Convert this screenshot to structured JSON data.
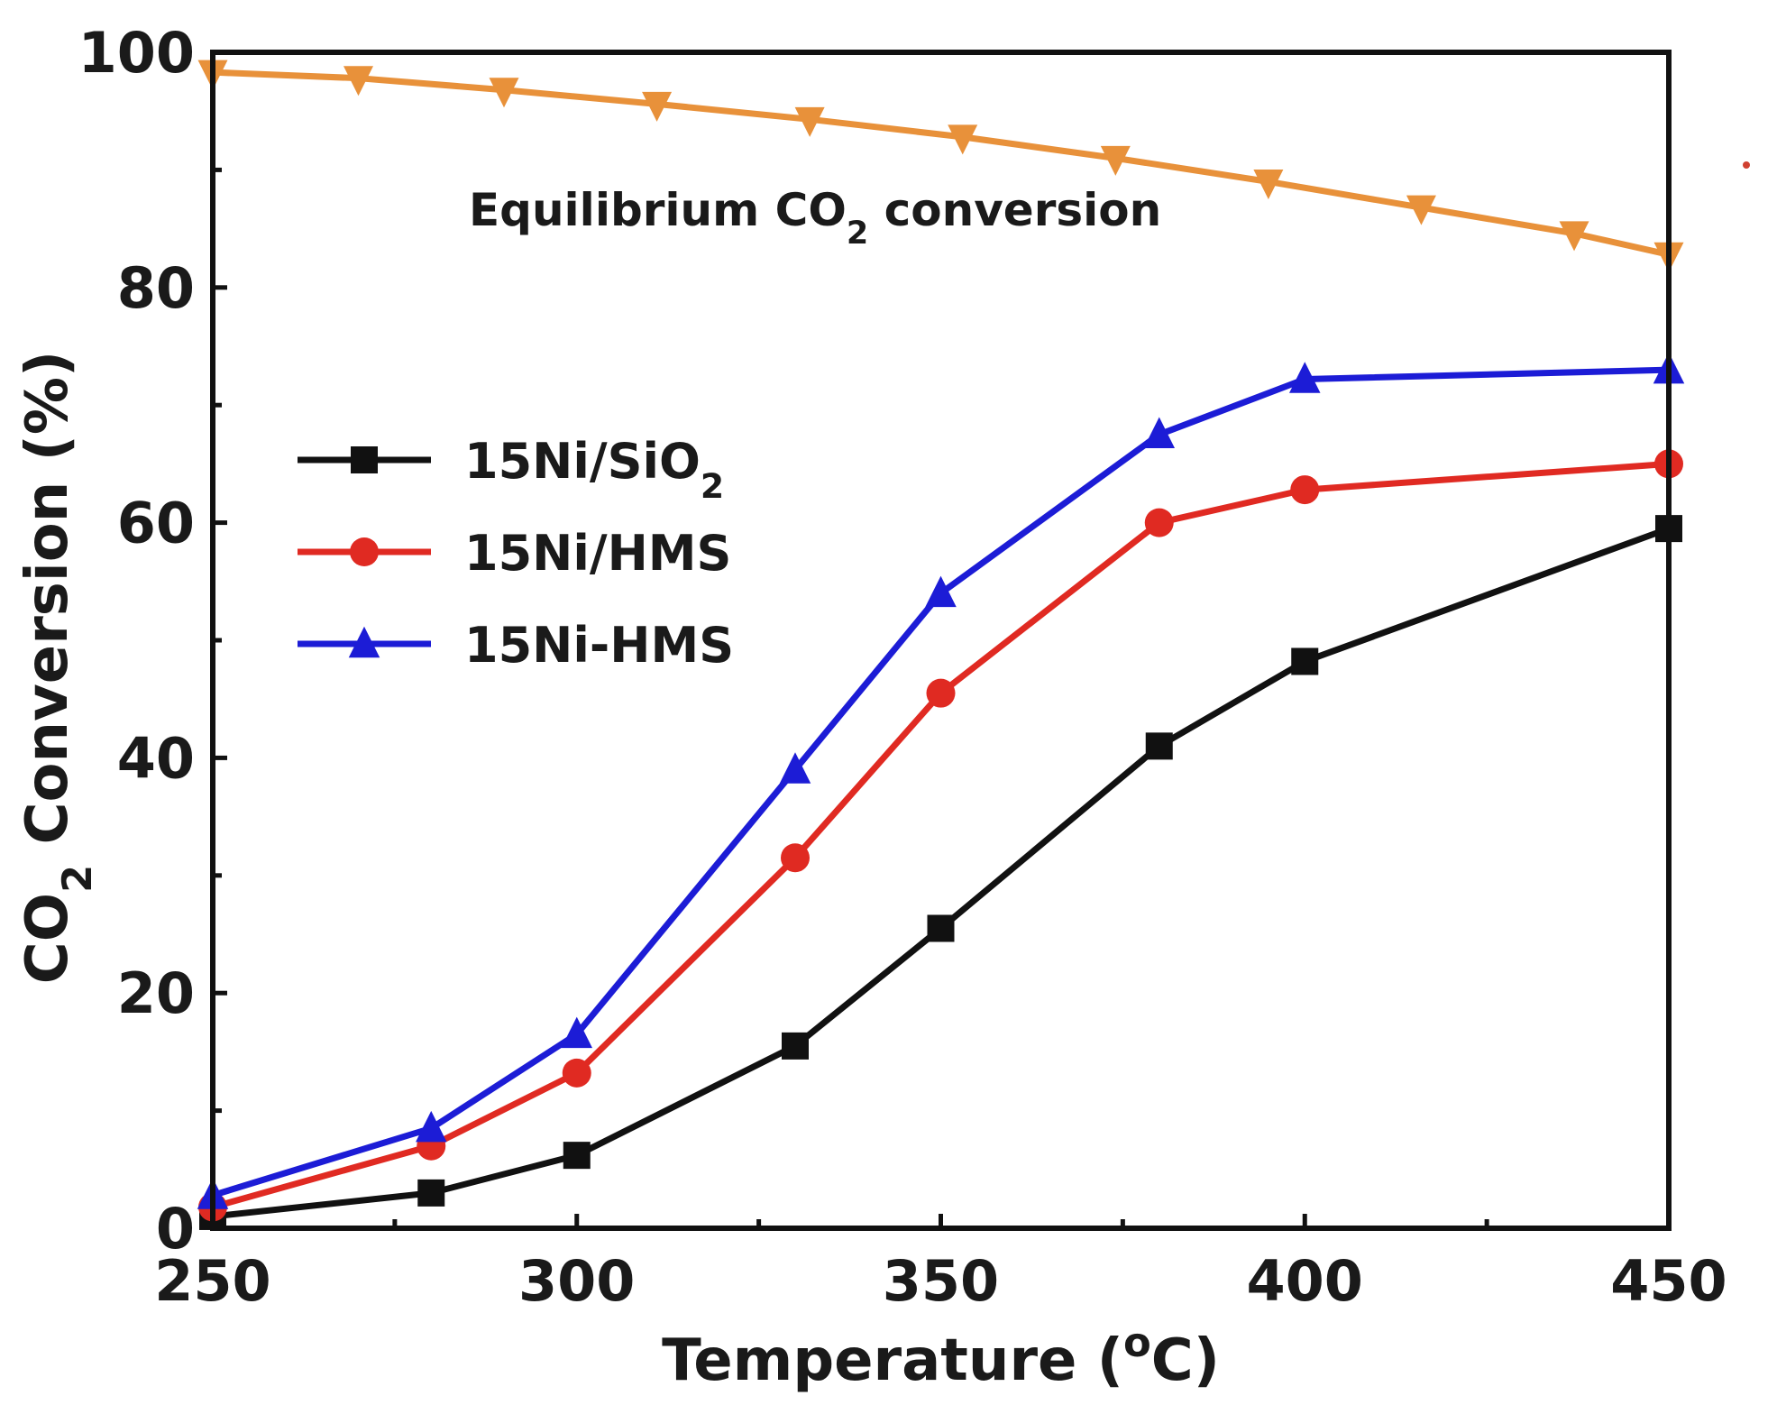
{
  "chart_data": {
    "type": "line",
    "title": "",
    "xlabel": {
      "main": "Temperature (",
      "sup": "o",
      "tail": "C)"
    },
    "ylabel": {
      "main": "CO",
      "sub": "2",
      "tail": " Conversion (%)"
    },
    "xlim": [
      250,
      450
    ],
    "ylim": [
      0,
      100
    ],
    "xticks": [
      250,
      300,
      350,
      400,
      450
    ],
    "yticks": [
      0,
      20,
      40,
      60,
      80,
      100
    ],
    "xtick_labels": [
      "250",
      "300",
      "350",
      "400",
      "450"
    ],
    "ytick_labels": [
      "0",
      "20",
      "40",
      "60",
      "80",
      "100"
    ],
    "grid": false,
    "legend_position": "middle-left",
    "series": [
      {
        "name": "15Ni/SiO2",
        "label": {
          "main": "15Ni/SiO",
          "sub": "2"
        },
        "color": "#111111",
        "marker": "square",
        "x": [
          250,
          280,
          300,
          330,
          350,
          380,
          400,
          450
        ],
        "y": [
          1.0,
          3.0,
          6.2,
          15.5,
          25.5,
          41.0,
          48.2,
          59.5
        ]
      },
      {
        "name": "15Ni/HMS",
        "label": {
          "main": "15Ni/HMS",
          "sub": ""
        },
        "color": "#e02a22",
        "marker": "circle",
        "x": [
          250,
          280,
          300,
          330,
          350,
          380,
          400,
          450
        ],
        "y": [
          1.8,
          7.0,
          13.2,
          31.5,
          45.5,
          60.0,
          62.8,
          65.0
        ]
      },
      {
        "name": "15Ni-HMS",
        "label": {
          "main": "15Ni-HMS",
          "sub": ""
        },
        "color": "#1c1cd6",
        "marker": "triangle-up",
        "x": [
          250,
          280,
          300,
          330,
          350,
          380,
          400,
          450
        ],
        "y": [
          2.8,
          8.5,
          16.5,
          39.0,
          54.0,
          67.5,
          72.2,
          73.0
        ]
      },
      {
        "name": "Equilibrium CO2 conversion",
        "label": {
          "main": "",
          "sub": ""
        },
        "color": "#e8913a",
        "marker": "triangle-down",
        "x": [
          250,
          270,
          290,
          311,
          332,
          353,
          374,
          395,
          416,
          437,
          450
        ],
        "y": [
          98.3,
          97.8,
          96.8,
          95.6,
          94.3,
          92.8,
          91.0,
          89.0,
          86.8,
          84.6,
          82.8
        ]
      }
    ],
    "annotations": [
      {
        "text_main": "Equilibrium CO",
        "text_sub": "2",
        "text_tail": " conversion",
        "anchor_x": 252,
        "anchor_y": 86.5
      }
    ]
  }
}
